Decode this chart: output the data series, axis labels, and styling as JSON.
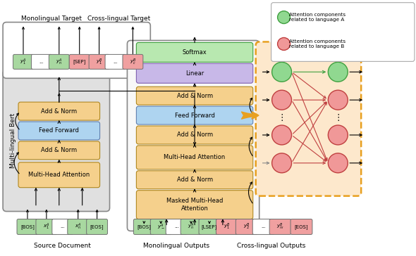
{
  "bg_color": "#ffffff",
  "green_token": "#a8d8a0",
  "red_token": "#f0a0a0",
  "yellow_block": "#f5d08c",
  "blue_block": "#aed4f0",
  "green_block": "#b8e8b0",
  "purple_block": "#c8b8e8",
  "enc_bg": "#e0e0e0",
  "dec_bg": "#f8f8f8",
  "cross_bg": "#fde8cc",
  "orange_arrow": "#e8a020",
  "green_node": "#90d890",
  "red_node": "#f09898",
  "green_edge": "#40a040",
  "red_edge": "#c04040",
  "legend_green_text": "Attention components\nrelated to language A",
  "legend_red_text": "Attention components\nrelated to language B",
  "src_label": "Source Document",
  "mono_out_label": "Monolingual Outputs",
  "cross_out_label": "Cross-lingual Outputs",
  "mono_tgt_label": "Monolingual Target",
  "cross_tgt_label": "Cross-lingual Target",
  "enc_label": "Multi-lingual Bert"
}
